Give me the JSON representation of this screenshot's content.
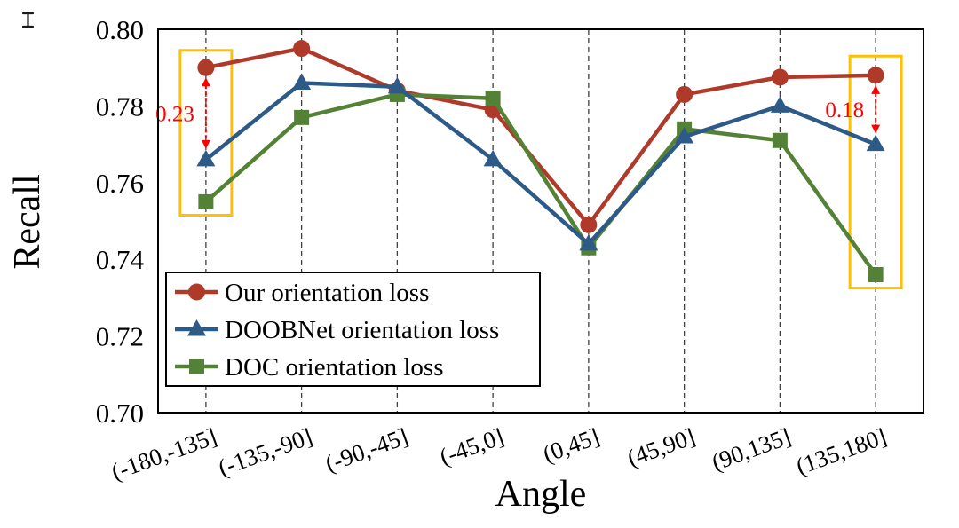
{
  "figure": {
    "corner_icon": "error-bar-icon"
  },
  "chart_data": {
    "type": "line",
    "title": "",
    "xlabel": "Angle",
    "ylabel": "Recall",
    "ylim": [
      0.7,
      0.8
    ],
    "y_ticks": [
      "0.70",
      "0.72",
      "0.74",
      "0.76",
      "0.78",
      "0.80"
    ],
    "grid": "vertical-dashed",
    "legend_position": "lower-left-inside",
    "categories": [
      "(-180,-135]",
      "(-135,-90]",
      "(-90,-45]",
      "(-45,0]",
      "(0,45]",
      "(45,90]",
      "(90,135]",
      "(135,180]"
    ],
    "series": [
      {
        "name": "Our orientation loss",
        "marker": "circle",
        "color": "#B03A2A",
        "values": [
          0.79,
          0.795,
          0.784,
          0.779,
          0.749,
          0.783,
          0.7875,
          0.788
        ]
      },
      {
        "name": "DOOBNet orientation loss",
        "marker": "triangle",
        "color": "#2E5A87",
        "values": [
          0.766,
          0.786,
          0.785,
          0.766,
          0.744,
          0.772,
          0.78,
          0.77
        ]
      },
      {
        "name": "DOC orientation loss",
        "marker": "square",
        "color": "#538135",
        "values": [
          0.755,
          0.777,
          0.783,
          0.782,
          0.743,
          0.774,
          0.771,
          0.736
        ]
      }
    ],
    "annotations": [
      {
        "label": "0.23",
        "category": 0,
        "y_from": 0.766,
        "y_to": 0.79,
        "color": "#FF0000"
      },
      {
        "label": "0.18",
        "category": 7,
        "y_from": 0.77,
        "y_to": 0.788,
        "color": "#FF0000"
      }
    ],
    "highlights": [
      {
        "category": 0,
        "y_top": 0.7945,
        "y_bottom": 0.7515,
        "color": "#FFC000"
      },
      {
        "category": 7,
        "y_top": 0.793,
        "y_bottom": 0.7325,
        "color": "#FFC000"
      }
    ]
  }
}
